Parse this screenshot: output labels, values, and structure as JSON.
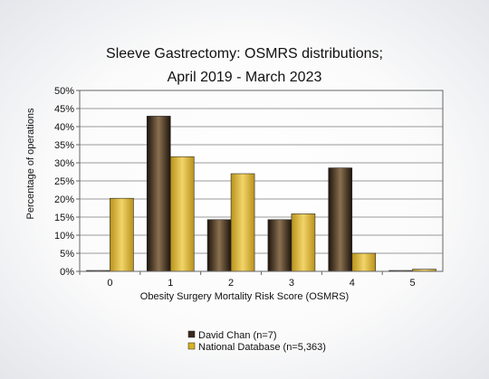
{
  "chart_data": {
    "type": "bar",
    "title_line1": "Sleeve Gastrectomy: OSMRS distributions;",
    "title_line2": "April 2019 - March 2023",
    "xlabel": "Obesity Surgery Mortality Risk Score (OSMRS)",
    "ylabel": "Percentage of operations",
    "categories": [
      "0",
      "1",
      "2",
      "3",
      "4",
      "5"
    ],
    "y_ticks": [
      "0%",
      "5%",
      "10%",
      "15%",
      "20%",
      "25%",
      "30%",
      "35%",
      "40%",
      "45%",
      "50%"
    ],
    "ylim": [
      0,
      50
    ],
    "grid": true,
    "legend_position": "bottom",
    "series": [
      {
        "name": "David Chan (n=7)",
        "color": "#3a2a1c",
        "values": [
          0,
          42.9,
          14.3,
          14.3,
          28.6,
          0
        ]
      },
      {
        "name": "National Database (n=5,363)",
        "color": "#d9b21e",
        "values": [
          20.2,
          31.7,
          27.0,
          15.9,
          5.0,
          0.6
        ]
      }
    ]
  }
}
